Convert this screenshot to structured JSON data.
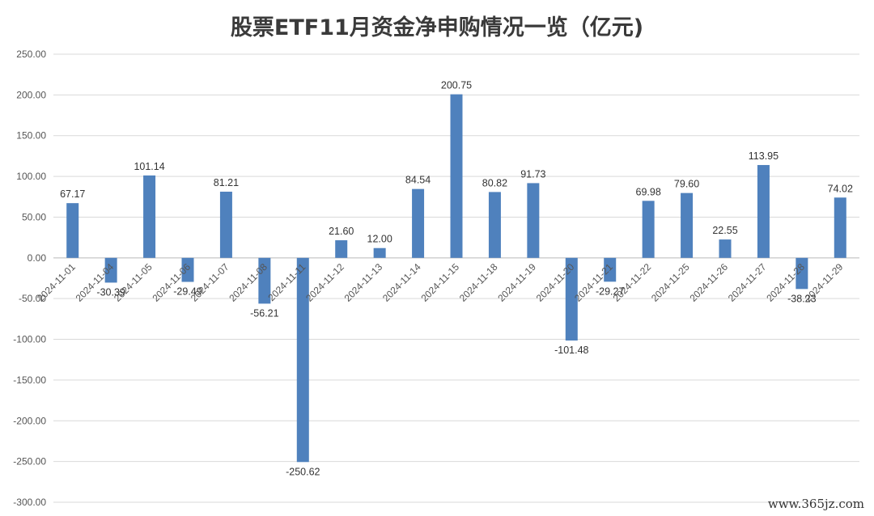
{
  "title": "股票ETF11月资金净申购情况一览（亿元)",
  "watermark": "www.365jz.com",
  "chart_data": {
    "type": "bar",
    "title": "股票ETF11月资金净申购情况一览（亿元)",
    "xlabel": "",
    "ylabel": "",
    "ylim": [
      -300,
      250
    ],
    "ytick_step": 50,
    "yticks": [
      "250.00",
      "200.00",
      "150.00",
      "100.00",
      "50.00",
      "0.00",
      "-50.00",
      "-100.00",
      "-150.00",
      "-200.00",
      "-250.00",
      "-300.00"
    ],
    "grid": true,
    "bar_color": "#4f81bd",
    "categories": [
      "2024-11-01",
      "2024-11-04",
      "2024-11-05",
      "2024-11-06",
      "2024-11-07",
      "2024-11-08",
      "2024-11-11",
      "2024-11-12",
      "2024-11-13",
      "2024-11-14",
      "2024-11-15",
      "2024-11-18",
      "2024-11-19",
      "2024-11-20",
      "2024-11-21",
      "2024-11-22",
      "2024-11-25",
      "2024-11-26",
      "2024-11-27",
      "2024-11-28",
      "2024-11-29"
    ],
    "values": [
      67.17,
      -30.39,
      101.14,
      -29.49,
      81.21,
      -56.21,
      -250.62,
      21.6,
      12.0,
      84.54,
      200.75,
      80.82,
      91.73,
      -101.48,
      -29.27,
      69.98,
      79.6,
      22.55,
      113.95,
      -38.23,
      74.02
    ],
    "labels": [
      "67.17",
      "-30.39",
      "101.14",
      "-29.49",
      "81.21",
      "-56.21",
      "-250.62",
      "21.60",
      "12.00",
      "84.54",
      "200.75",
      "80.82",
      "91.73",
      "-101.48",
      "-29.27",
      "69.98",
      "79.60",
      "22.55",
      "113.95",
      "-38.23",
      "74.02"
    ]
  }
}
